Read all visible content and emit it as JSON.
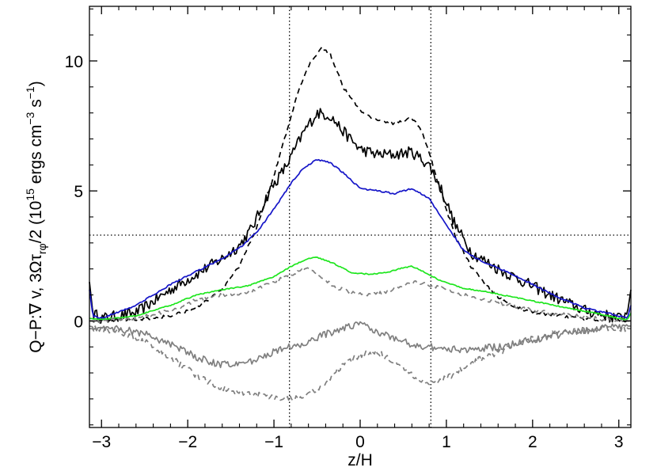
{
  "chart_data": {
    "type": "line",
    "xlabel": "z/H",
    "ylabel": {
      "prefix": "Q−P:∇ v, 3Ωτ",
      "sub": "rφ",
      "mid": "/2 (10",
      "exp1": "15",
      "unit_a": " ergs cm",
      "exp2": "−3",
      "unit_b": " s",
      "exp3": "−1",
      "suffix": ")"
    },
    "xlim": [
      -3.14,
      3.14
    ],
    "ylim": [
      -4.1,
      12.1
    ],
    "x_ticks": [
      -3,
      -2,
      -1,
      0,
      1,
      2,
      3
    ],
    "x_tick_labels": [
      "−3",
      "−2",
      "−1",
      "0",
      "1",
      "2",
      "3"
    ],
    "y_ticks": [
      0,
      5,
      10
    ],
    "y_tick_labels": [
      "0",
      "5",
      "10"
    ],
    "reference_lines": {
      "vertical": [
        -0.82,
        0.82
      ],
      "horizontal": [
        3.3
      ]
    },
    "grid": false,
    "series": [
      {
        "color": "#000000",
        "dash": "solid",
        "noise": 0.22,
        "x": [
          -3.14,
          -3.1,
          -3.0,
          -2.6,
          -2.2,
          -1.9,
          -1.6,
          -1.4,
          -1.25,
          -1.05,
          -0.85,
          -0.65,
          -0.5,
          -0.35,
          -0.2,
          0.0,
          0.2,
          0.4,
          0.6,
          0.8,
          0.95,
          1.1,
          1.3,
          1.6,
          1.9,
          2.2,
          2.6,
          3.0,
          3.1,
          3.14
        ],
        "y": [
          1.5,
          0.3,
          0.1,
          0.3,
          1.2,
          1.8,
          2.4,
          2.9,
          3.6,
          5.0,
          6.0,
          7.3,
          8.0,
          7.9,
          7.3,
          6.6,
          6.4,
          6.4,
          6.5,
          6.0,
          5.0,
          3.7,
          2.6,
          2.0,
          1.5,
          1.0,
          0.4,
          0.1,
          0.3,
          1.2
        ]
      },
      {
        "color": "#000000",
        "dash": "dashed",
        "noise": 0.06,
        "x": [
          -3.14,
          -3.0,
          -2.6,
          -2.2,
          -1.9,
          -1.6,
          -1.4,
          -1.2,
          -1.0,
          -0.85,
          -0.7,
          -0.55,
          -0.45,
          -0.35,
          -0.2,
          0.0,
          0.2,
          0.4,
          0.6,
          0.7,
          0.8,
          0.95,
          1.1,
          1.3,
          1.6,
          1.9,
          2.3,
          2.7,
          3.0,
          3.14
        ],
        "y": [
          0.0,
          0.0,
          0.05,
          0.2,
          0.5,
          1.2,
          2.1,
          3.6,
          5.6,
          7.3,
          9.0,
          10.1,
          10.5,
          10.3,
          9.0,
          8.1,
          7.7,
          7.6,
          7.8,
          7.4,
          6.5,
          4.8,
          3.3,
          2.0,
          0.9,
          0.4,
          0.2,
          0.05,
          0.0,
          0.0
        ]
      },
      {
        "color": "#1515c8",
        "dash": "solid",
        "noise": 0.03,
        "x": [
          -3.14,
          -3.1,
          -3.0,
          -2.6,
          -2.2,
          -1.9,
          -1.6,
          -1.4,
          -1.2,
          -1.0,
          -0.8,
          -0.65,
          -0.5,
          -0.35,
          -0.2,
          0.0,
          0.2,
          0.4,
          0.6,
          0.8,
          1.0,
          1.2,
          1.4,
          1.7,
          2.0,
          2.3,
          2.6,
          3.0,
          3.1,
          3.14
        ],
        "y": [
          1.2,
          0.2,
          0.1,
          0.6,
          1.4,
          1.9,
          2.4,
          2.8,
          3.4,
          4.3,
          5.3,
          5.9,
          6.2,
          6.1,
          5.7,
          5.1,
          5.0,
          4.9,
          5.1,
          4.7,
          3.7,
          2.7,
          2.3,
          1.9,
          1.4,
          0.9,
          0.5,
          0.2,
          0.1,
          0.6
        ]
      },
      {
        "color": "#1ee61e",
        "dash": "solid",
        "noise": 0.02,
        "x": [
          -3.14,
          -3.0,
          -2.6,
          -2.2,
          -1.9,
          -1.6,
          -1.3,
          -1.0,
          -0.8,
          -0.6,
          -0.5,
          -0.3,
          -0.1,
          0.1,
          0.3,
          0.5,
          0.6,
          0.7,
          0.9,
          1.2,
          1.5,
          1.8,
          2.1,
          2.4,
          2.8,
          3.0,
          3.1,
          3.14
        ],
        "y": [
          0.1,
          0.05,
          0.2,
          0.6,
          1.0,
          1.2,
          1.35,
          1.7,
          2.1,
          2.4,
          2.45,
          2.2,
          1.85,
          1.8,
          1.85,
          2.05,
          2.1,
          1.95,
          1.6,
          1.25,
          1.1,
          0.9,
          0.7,
          0.5,
          0.25,
          0.1,
          0.05,
          0.3
        ]
      },
      {
        "color": "#7f7f7f",
        "dash": "dashed",
        "noise": 0.07,
        "x": [
          -3.14,
          -3.0,
          -2.6,
          -2.2,
          -1.9,
          -1.6,
          -1.3,
          -1.0,
          -0.8,
          -0.6,
          -0.45,
          -0.3,
          -0.1,
          0.1,
          0.3,
          0.5,
          0.65,
          0.8,
          1.0,
          1.3,
          1.6,
          1.9,
          2.2,
          2.6,
          3.0,
          3.14
        ],
        "y": [
          0.0,
          0.0,
          0.1,
          0.4,
          0.8,
          1.0,
          1.1,
          1.5,
          1.8,
          2.0,
          1.7,
          1.3,
          1.1,
          1.0,
          1.1,
          1.4,
          1.5,
          1.4,
          1.2,
          0.9,
          0.7,
          0.5,
          0.3,
          0.15,
          0.0,
          0.0
        ]
      },
      {
        "color": "#7f7f7f",
        "dash": "solid",
        "noise": 0.14,
        "x": [
          -3.14,
          -3.0,
          -2.8,
          -2.5,
          -2.2,
          -1.9,
          -1.6,
          -1.3,
          -1.0,
          -0.8,
          -0.6,
          -0.4,
          -0.2,
          0.0,
          0.2,
          0.4,
          0.6,
          0.8,
          1.0,
          1.3,
          1.6,
          1.9,
          2.2,
          2.5,
          2.8,
          3.0,
          3.14
        ],
        "y": [
          -0.2,
          -0.3,
          -0.3,
          -0.5,
          -0.9,
          -1.4,
          -1.7,
          -1.6,
          -1.2,
          -1.0,
          -0.8,
          -0.5,
          -0.3,
          -0.1,
          -0.4,
          -0.7,
          -0.9,
          -1.0,
          -1.1,
          -1.1,
          -1.0,
          -0.8,
          -0.6,
          -0.4,
          -0.3,
          -0.2,
          -0.2
        ]
      },
      {
        "color": "#7f7f7f",
        "dash": "dashed",
        "noise": 0.12,
        "x": [
          -3.14,
          -3.0,
          -2.8,
          -2.5,
          -2.2,
          -1.9,
          -1.6,
          -1.3,
          -1.0,
          -0.8,
          -0.6,
          -0.4,
          -0.2,
          0.0,
          0.2,
          0.4,
          0.6,
          0.8,
          1.0,
          1.3,
          1.6,
          1.9,
          2.2,
          2.5,
          2.8,
          3.0,
          3.14
        ],
        "y": [
          -0.3,
          -0.3,
          -0.4,
          -0.8,
          -1.4,
          -2.1,
          -2.6,
          -2.8,
          -2.9,
          -3.0,
          -2.8,
          -2.4,
          -1.7,
          -1.3,
          -1.2,
          -1.6,
          -2.1,
          -2.4,
          -2.2,
          -1.6,
          -1.2,
          -0.8,
          -0.5,
          -0.4,
          -0.3,
          -0.3,
          -0.3
        ]
      }
    ]
  }
}
